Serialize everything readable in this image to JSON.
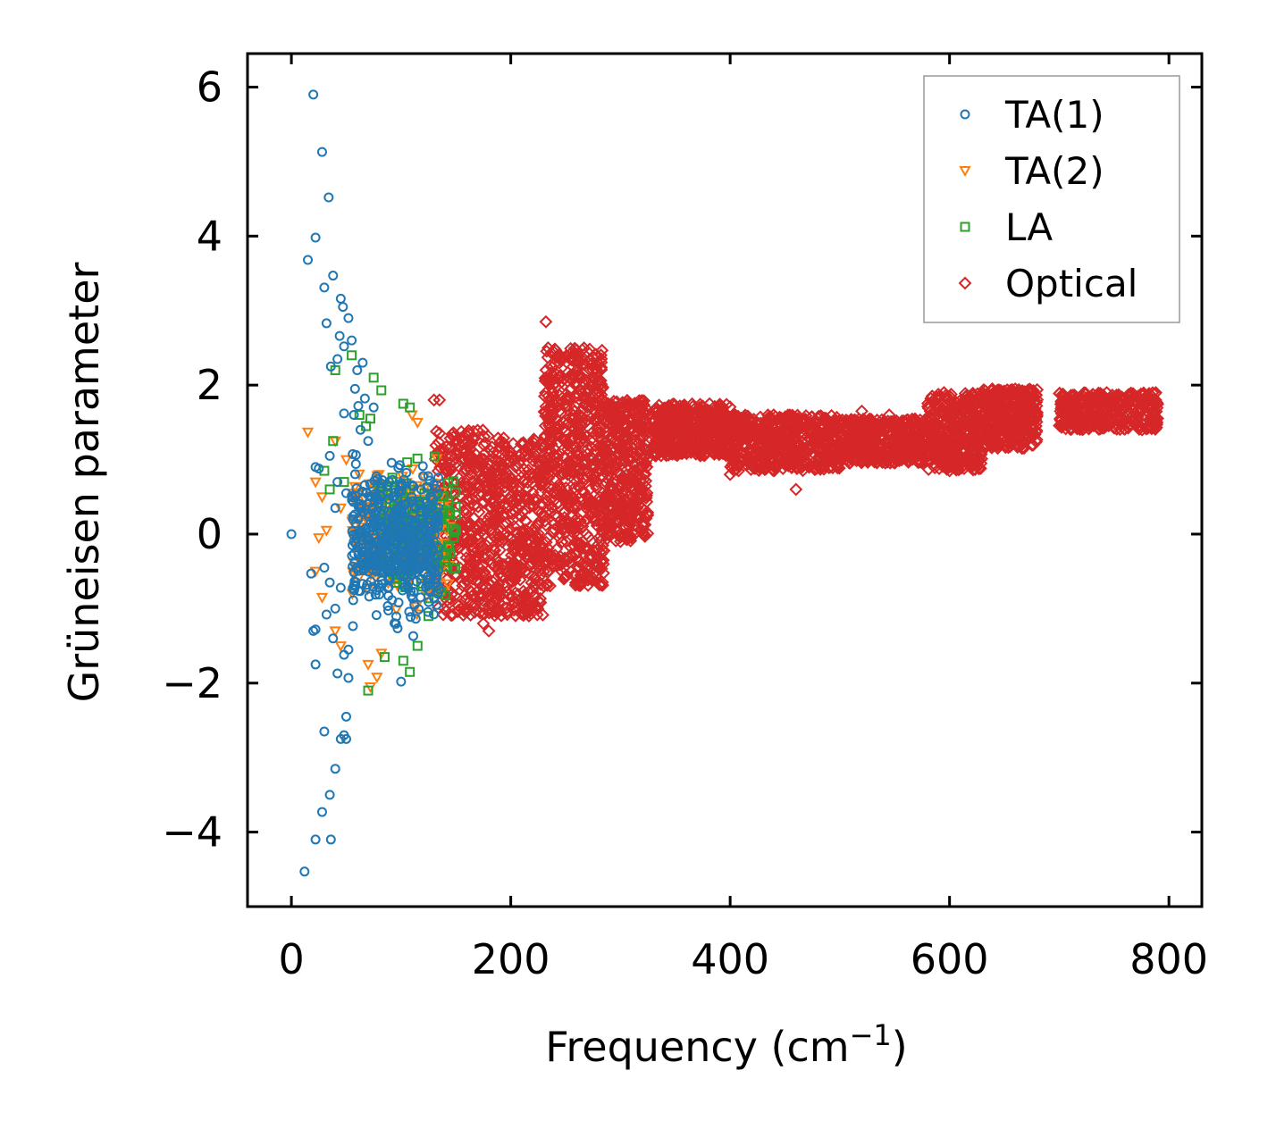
{
  "chart_data": {
    "type": "scatter",
    "title": "",
    "xlabel": "Frequency (cm",
    "xlabel_sup": "−1",
    "xlabel_close": ")",
    "ylabel": "Grüneisen parameter",
    "xlim": [
      -40,
      830
    ],
    "ylim": [
      -5,
      6.45
    ],
    "xticks": [
      0,
      200,
      400,
      600,
      800
    ],
    "xtick_labels": [
      "0",
      "200",
      "400",
      "600",
      "800"
    ],
    "yticks": [
      -4,
      -2,
      0,
      2,
      4,
      6
    ],
    "ytick_labels": [
      "−4",
      "−2",
      "0",
      "2",
      "4",
      "6"
    ],
    "grid": false,
    "legend_position": "top-right",
    "series": [
      {
        "name": "TA(1)",
        "marker": "circle",
        "color": "#1f77b4",
        "points": [
          [
            0,
            0
          ],
          [
            20,
            5.9
          ],
          [
            28,
            5.13
          ],
          [
            34,
            4.52
          ],
          [
            22,
            3.98
          ],
          [
            15,
            3.68
          ],
          [
            38,
            3.47
          ],
          [
            30,
            3.31
          ],
          [
            45,
            3.16
          ],
          [
            47,
            3.05
          ],
          [
            52,
            2.9
          ],
          [
            32,
            2.83
          ],
          [
            55,
            2.6
          ],
          [
            44,
            2.66
          ],
          [
            48,
            2.52
          ],
          [
            42,
            2.35
          ],
          [
            65,
            2.3
          ],
          [
            36,
            2.25
          ],
          [
            60,
            2.2
          ],
          [
            58,
            1.95
          ],
          [
            67,
            1.82
          ],
          [
            61,
            1.72
          ],
          [
            75,
            1.7
          ],
          [
            48,
            1.62
          ],
          [
            57,
            1.6
          ],
          [
            63,
            1.4
          ],
          [
            70,
            1.25
          ],
          [
            35,
            1.05
          ],
          [
            22,
            0.9
          ],
          [
            25,
            0.88
          ],
          [
            42,
            0.7
          ],
          [
            50,
            0.55
          ],
          [
            40,
            0.35
          ],
          [
            30,
            -0.45
          ],
          [
            18,
            -0.53
          ],
          [
            35,
            -0.65
          ],
          [
            45,
            -0.72
          ],
          [
            40,
            -1.0
          ],
          [
            32,
            -1.08
          ],
          [
            22,
            -1.28
          ],
          [
            20,
            -1.3
          ],
          [
            38,
            -1.4
          ],
          [
            48,
            -1.62
          ],
          [
            52,
            -1.55
          ],
          [
            22,
            -1.75
          ],
          [
            42,
            -1.87
          ],
          [
            52,
            -1.93
          ],
          [
            100,
            -1.98
          ],
          [
            50,
            -2.45
          ],
          [
            30,
            -2.65
          ],
          [
            48,
            -2.7
          ],
          [
            50,
            -2.75
          ],
          [
            45,
            -2.75
          ],
          [
            40,
            -3.15
          ],
          [
            35,
            -3.5
          ],
          [
            28,
            -3.73
          ],
          [
            22,
            -4.1
          ],
          [
            36,
            -4.1
          ],
          [
            12,
            -4.53
          ]
        ],
        "cloud": {
          "x": [
            55,
            135
          ],
          "y_center": -0.1,
          "y_spread": 1.35,
          "count": 520
        }
      },
      {
        "name": "TA(2)",
        "marker": "triangle-down",
        "color": "#ff7f0e",
        "points": [
          [
            15,
            1.37
          ],
          [
            40,
            1.25
          ],
          [
            50,
            1.0
          ],
          [
            22,
            0.7
          ],
          [
            28,
            0.5
          ],
          [
            45,
            0.35
          ],
          [
            25,
            -0.05
          ],
          [
            32,
            0.05
          ],
          [
            60,
            -0.25
          ],
          [
            22,
            -0.5
          ],
          [
            28,
            -0.85
          ],
          [
            40,
            -1.3
          ],
          [
            45,
            -1.5
          ],
          [
            70,
            -1.75
          ],
          [
            78,
            -1.92
          ],
          [
            72,
            -2.05
          ],
          [
            82,
            -1.6
          ],
          [
            110,
            1.6
          ],
          [
            115,
            1.5
          ]
        ],
        "cloud": {
          "x": [
            55,
            145
          ],
          "y_center": 0.0,
          "y_spread": 1.25,
          "count": 300
        }
      },
      {
        "name": "LA",
        "marker": "square",
        "color": "#2ca02c",
        "points": [
          [
            62,
            1.6
          ],
          [
            72,
            1.55
          ],
          [
            40,
            2.2
          ],
          [
            55,
            2.4
          ],
          [
            75,
            2.1
          ],
          [
            82,
            1.93
          ],
          [
            102,
            1.75
          ],
          [
            108,
            1.7
          ],
          [
            38,
            1.25
          ],
          [
            48,
            0.7
          ],
          [
            30,
            0.85
          ],
          [
            35,
            0.6
          ],
          [
            68,
            1.45
          ],
          [
            102,
            -1.7
          ],
          [
            108,
            -1.85
          ],
          [
            85,
            -1.65
          ],
          [
            70,
            -2.1
          ],
          [
            115,
            -1.5
          ],
          [
            125,
            -1.1
          ],
          [
            150,
            0.05
          ]
        ],
        "cloud": {
          "x": [
            80,
            150
          ],
          "y_center": 0.0,
          "y_spread": 1.2,
          "count": 180
        }
      },
      {
        "name": "Optical",
        "marker": "diamond",
        "color": "#d62728",
        "points": [
          [
            232,
            2.85
          ],
          [
            234,
            2.5
          ],
          [
            130,
            1.8
          ],
          [
            135,
            1.8
          ],
          [
            180,
            -1.3
          ],
          [
            155,
            -1.0
          ],
          [
            175,
            -1.2
          ],
          [
            460,
            0.6
          ],
          [
            400,
            0.8
          ],
          [
            520,
            1.65
          ],
          [
            545,
            1.6
          ],
          [
            600,
            0.85
          ],
          [
            300,
            -0.1
          ],
          [
            320,
            0.05
          ]
        ],
        "cloud_regions": [
          {
            "x": [
              130,
              180
            ],
            "y_min": -1.1,
            "y_max": 1.4,
            "count": 380
          },
          {
            "x": [
              180,
              230
            ],
            "y_min": -1.1,
            "y_max": 1.3,
            "count": 450
          },
          {
            "x": [
              230,
              285
            ],
            "y_min": -0.7,
            "y_max": 2.5,
            "count": 650
          },
          {
            "x": [
              285,
              325
            ],
            "y_min": -0.1,
            "y_max": 1.8,
            "count": 400
          },
          {
            "x": [
              330,
              400
            ],
            "y_min": 1.05,
            "y_max": 1.75,
            "count": 450
          },
          {
            "x": [
              400,
              500
            ],
            "y_min": 0.85,
            "y_max": 1.6,
            "count": 550
          },
          {
            "x": [
              500,
              580
            ],
            "y_min": 0.95,
            "y_max": 1.55,
            "count": 450
          },
          {
            "x": [
              580,
              630
            ],
            "y_min": 0.85,
            "y_max": 1.9,
            "count": 380
          },
          {
            "x": [
              630,
              680
            ],
            "y_min": 1.15,
            "y_max": 1.95,
            "count": 380
          },
          {
            "x": [
              700,
              790
            ],
            "y_min": 1.4,
            "y_max": 1.9,
            "count": 380
          }
        ]
      }
    ]
  }
}
